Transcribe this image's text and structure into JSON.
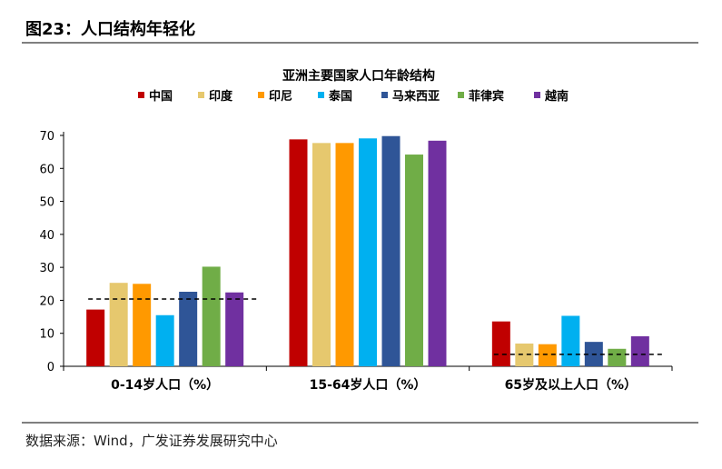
{
  "header": {
    "title": "图23：人口结构年轻化"
  },
  "footer": {
    "source": "数据来源：Wind，广发证券发展研究中心"
  },
  "chart_data": {
    "type": "bar",
    "title": "亚洲主要国家人口年龄结构",
    "categories": [
      "0-14岁人口（%）",
      "15-64岁人口（%）",
      "65岁及以上人口（%）"
    ],
    "ylim": [
      0,
      70
    ],
    "yticks": [
      0,
      10,
      20,
      30,
      40,
      50,
      60,
      70
    ],
    "legend_position": "top",
    "series": [
      {
        "name": "中国",
        "color": "#c00000",
        "values": [
          17.2,
          68.8,
          13.6
        ]
      },
      {
        "name": "印度",
        "color": "#e6c86e",
        "values": [
          25.3,
          67.7,
          6.9
        ]
      },
      {
        "name": "印尼",
        "color": "#ff9900",
        "values": [
          25.0,
          67.7,
          6.7
        ]
      },
      {
        "name": "泰国",
        "color": "#00b0f0",
        "values": [
          15.5,
          69.1,
          15.3
        ]
      },
      {
        "name": "马来西亚",
        "color": "#2f5597",
        "values": [
          22.6,
          69.8,
          7.4
        ]
      },
      {
        "name": "菲律宾",
        "color": "#70ad47",
        "values": [
          30.2,
          64.2,
          5.3
        ]
      },
      {
        "name": "越南",
        "color": "#7030a0",
        "values": [
          22.4,
          68.4,
          9.1
        ]
      }
    ],
    "averages": [
      20.4,
      null,
      3.6
    ]
  }
}
